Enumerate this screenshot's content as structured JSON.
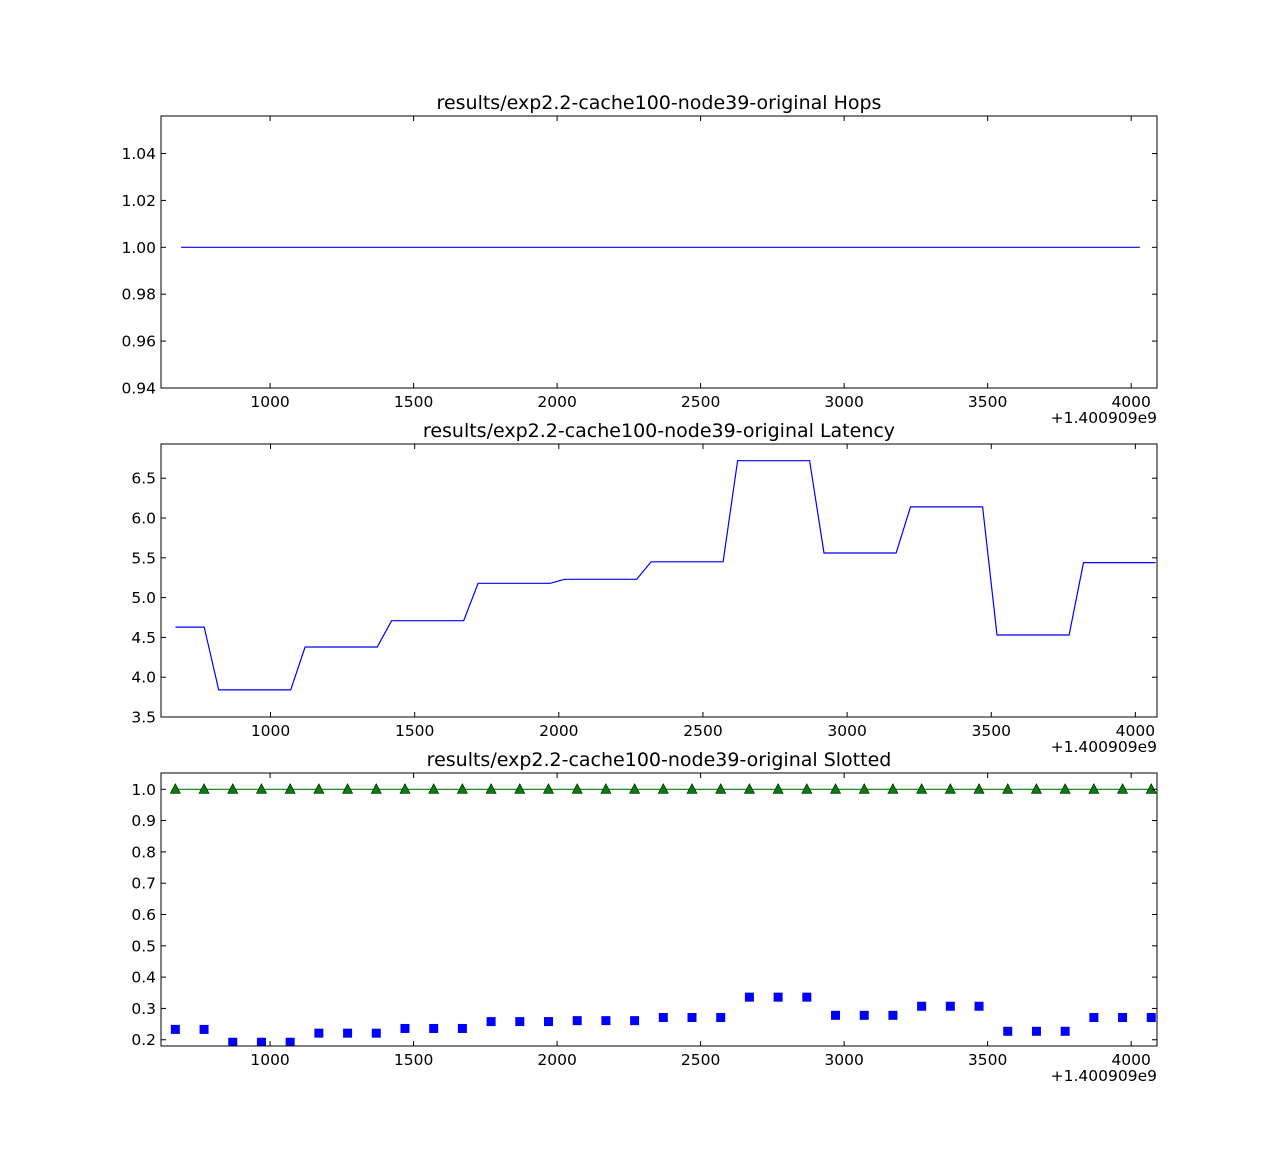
{
  "chart_data": [
    {
      "type": "line",
      "title": "results/exp2.2-cache100-node39-original Hops",
      "x_offset_label": "+1.400909e9",
      "xlim": [
        620,
        4090
      ],
      "ylim": [
        0.94,
        1.056
      ],
      "x_ticks": [
        1000,
        1500,
        2000,
        2500,
        3000,
        3500,
        4000
      ],
      "x_tick_labels": [
        "1000",
        "1500",
        "2000",
        "2500",
        "3000",
        "3500",
        "4000"
      ],
      "y_ticks": [
        0.94,
        0.96,
        0.98,
        1.0,
        1.02,
        1.04
      ],
      "y_tick_labels": [
        "0.94",
        "0.96",
        "0.98",
        "1.00",
        "1.02",
        "1.04"
      ],
      "series": [
        {
          "color": "#0000ff",
          "marker": "none",
          "x": [
            690,
            4030
          ],
          "y": [
            1.0,
            1.0
          ]
        }
      ]
    },
    {
      "type": "line",
      "title": "results/exp2.2-cache100-node39-original Latency",
      "x_offset_label": "+1.400909e9",
      "xlim": [
        620,
        4075
      ],
      "ylim": [
        3.5,
        6.93
      ],
      "x_ticks": [
        1000,
        1500,
        2000,
        2500,
        3000,
        3500,
        4000
      ],
      "x_tick_labels": [
        "1000",
        "1500",
        "2000",
        "2500",
        "3000",
        "3500",
        "4000"
      ],
      "y_ticks": [
        3.5,
        4.0,
        4.5,
        5.0,
        5.5,
        6.0,
        6.5
      ],
      "y_tick_labels": [
        "3.5",
        "4.0",
        "4.5",
        "5.0",
        "5.5",
        "6.0",
        "6.5"
      ],
      "series": [
        {
          "color": "#0000ff",
          "marker": "none",
          "x": [
            670,
            770,
            820,
            1070,
            1120,
            1370,
            1420,
            1670,
            1720,
            1970,
            2020,
            2270,
            2320,
            2570,
            2620,
            2870,
            2920,
            3170,
            3220,
            3470,
            3520,
            3770,
            3820,
            4070
          ],
          "y": [
            4.63,
            4.63,
            3.84,
            3.84,
            4.38,
            4.38,
            4.71,
            4.71,
            5.18,
            5.18,
            5.23,
            5.23,
            5.45,
            5.45,
            6.72,
            6.72,
            5.56,
            5.56,
            6.14,
            6.14,
            4.53,
            4.53,
            5.44,
            5.44
          ]
        }
      ]
    },
    {
      "type": "scatter",
      "title": "results/exp2.2-cache100-node39-original Slotted",
      "x_offset_label": "+1.400909e9",
      "xlim": [
        620,
        4090
      ],
      "ylim": [
        0.18,
        1.052
      ],
      "x_ticks": [
        1000,
        1500,
        2000,
        2500,
        3000,
        3500,
        4000
      ],
      "x_tick_labels": [
        "1000",
        "1500",
        "2000",
        "2500",
        "3000",
        "3500",
        "4000"
      ],
      "y_ticks": [
        0.2,
        0.3,
        0.4,
        0.5,
        0.6,
        0.7,
        0.8,
        0.9,
        1.0
      ],
      "y_tick_labels": [
        "0.2",
        "0.3",
        "0.4",
        "0.5",
        "0.6",
        "0.7",
        "0.8",
        "0.9",
        "1.0"
      ],
      "series": [
        {
          "color": "#008000",
          "marker": "triangle",
          "line": true,
          "x": [
            670,
            770,
            870,
            970,
            1070,
            1170,
            1270,
            1370,
            1470,
            1570,
            1670,
            1770,
            1870,
            1970,
            2070,
            2170,
            2270,
            2370,
            2470,
            2570,
            2670,
            2770,
            2870,
            2970,
            3070,
            3170,
            3270,
            3370,
            3470,
            3570,
            3670,
            3770,
            3870,
            3970,
            4070
          ],
          "y": [
            1.0,
            1.0,
            1.0,
            1.0,
            1.0,
            1.0,
            1.0,
            1.0,
            1.0,
            1.0,
            1.0,
            1.0,
            1.0,
            1.0,
            1.0,
            1.0,
            1.0,
            1.0,
            1.0,
            1.0,
            1.0,
            1.0,
            1.0,
            1.0,
            1.0,
            1.0,
            1.0,
            1.0,
            1.0,
            1.0,
            1.0,
            1.0,
            1.0,
            1.0,
            1.0
          ]
        },
        {
          "color": "#0000ff",
          "marker": "square",
          "line": false,
          "x": [
            670,
            770,
            870,
            970,
            1070,
            1170,
            1270,
            1370,
            1470,
            1570,
            1670,
            1770,
            1870,
            1970,
            2070,
            2170,
            2270,
            2370,
            2470,
            2570,
            2670,
            2770,
            2870,
            2970,
            3070,
            3170,
            3270,
            3370,
            3470,
            3570,
            3670,
            3770,
            3870,
            3970,
            4070
          ],
          "y": [
            0.233,
            0.233,
            0.192,
            0.192,
            0.192,
            0.221,
            0.221,
            0.221,
            0.236,
            0.236,
            0.236,
            0.258,
            0.258,
            0.258,
            0.261,
            0.261,
            0.261,
            0.271,
            0.271,
            0.271,
            0.336,
            0.336,
            0.336,
            0.278,
            0.278,
            0.278,
            0.307,
            0.307,
            0.307,
            0.227,
            0.227,
            0.227,
            0.271,
            0.271,
            0.271
          ]
        }
      ]
    }
  ]
}
